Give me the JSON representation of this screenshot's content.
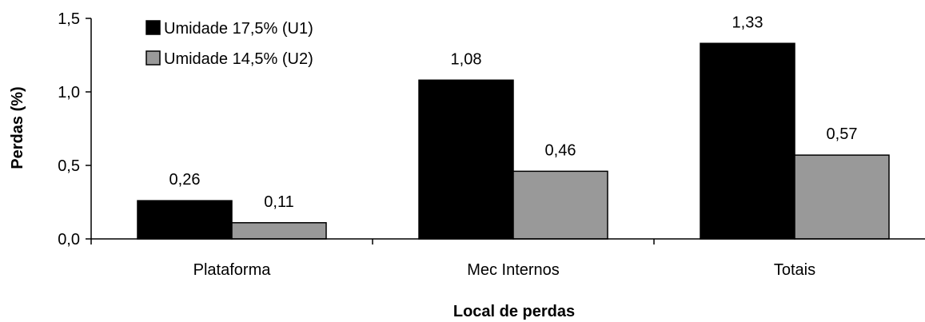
{
  "chart_data": {
    "type": "bar",
    "categories": [
      "Plataforma",
      "Mec Internos",
      "Totais"
    ],
    "series": [
      {
        "name": "Umidade 17,5% (U1)",
        "values": [
          0.26,
          1.08,
          1.33
        ],
        "labels": [
          "0,26",
          "1,08",
          "1,33"
        ],
        "color": "#000000"
      },
      {
        "name": "Umidade 14,5% (U2)",
        "values": [
          0.11,
          0.46,
          0.57
        ],
        "labels": [
          "0,11",
          "0,46",
          "0,57"
        ],
        "color": "#999999"
      }
    ],
    "xlabel": "Local de perdas",
    "ylabel": "Perdas (%)",
    "ylim": [
      0,
      1.5
    ],
    "yticks": [
      0,
      0.5,
      1.0,
      1.5
    ],
    "ytick_labels": [
      "0,0",
      "0,5",
      "1,0",
      "1,5"
    ],
    "grid": false,
    "legend_position": "top-left"
  }
}
